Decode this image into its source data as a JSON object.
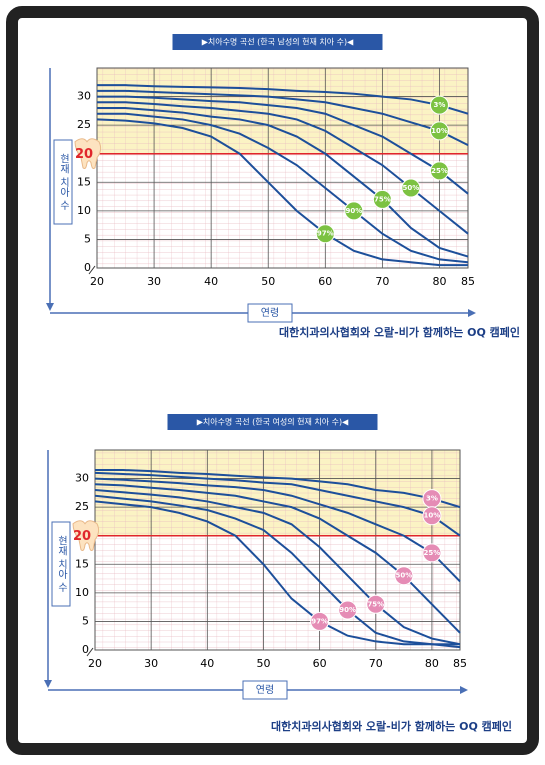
{
  "chart_data": [
    {
      "type": "line",
      "title": "▶치아수명 곡선 (한국 남성의 현재 치아 수)◀",
      "y_label": "현재 치아 수",
      "x_label": "연령",
      "caption": "대한치과의사협회와 오랄-비가 함께하는 OQ 캠페인",
      "x": [
        20,
        25,
        30,
        35,
        40,
        45,
        50,
        55,
        60,
        65,
        70,
        75,
        80,
        85
      ],
      "xlim": [
        20,
        85
      ],
      "xticks": [
        20,
        30,
        40,
        50,
        60,
        70,
        80,
        85
      ],
      "ylim": [
        0,
        35
      ],
      "yticks": [
        0,
        5,
        10,
        15,
        20,
        25,
        30
      ],
      "reference_line": 20,
      "grid": true,
      "marker_color": "#7cc242",
      "series": [
        {
          "name": "3%",
          "color": "#1d4f9a",
          "values": [
            32,
            32,
            31.8,
            31.7,
            31.6,
            31.5,
            31.3,
            31,
            30.8,
            30.5,
            30,
            29.5,
            28.5,
            27
          ]
        },
        {
          "name": "10%",
          "color": "#1d4f9a",
          "values": [
            31,
            31,
            30.8,
            30.6,
            30.4,
            30.2,
            30,
            29.5,
            29,
            28,
            27,
            25.5,
            24,
            21.5
          ]
        },
        {
          "name": "25%",
          "color": "#1d4f9a",
          "values": [
            30,
            30,
            29.8,
            29.5,
            29.2,
            29,
            28.5,
            28,
            27,
            25,
            23,
            20,
            17,
            13
          ]
        },
        {
          "name": "50%",
          "color": "#1d4f9a",
          "values": [
            29,
            29,
            28.7,
            28.3,
            28,
            27.5,
            27,
            26,
            24,
            21,
            18,
            14,
            10,
            6
          ]
        },
        {
          "name": "75%",
          "color": "#1d4f9a",
          "values": [
            28,
            28,
            27.6,
            27.2,
            26.5,
            26,
            25,
            23,
            20,
            16,
            12,
            7,
            3.5,
            2
          ]
        },
        {
          "name": "90%",
          "color": "#1d4f9a",
          "values": [
            27,
            27,
            26.5,
            26,
            25,
            23.5,
            21,
            18,
            14,
            10,
            6,
            3,
            1.5,
            1
          ]
        },
        {
          "name": "97%",
          "color": "#1d4f9a",
          "values": [
            26,
            25.8,
            25.3,
            24.5,
            23,
            20,
            15,
            10,
            6,
            3,
            1.5,
            1,
            0.5,
            0.5
          ]
        }
      ]
    },
    {
      "type": "line",
      "title": "▶치아수명 곡선 (한국 여성의 현재 치아 수)◀",
      "y_label": "현재 치아 수",
      "x_label": "연령",
      "caption": "대한치과의사협회와 오랄-비가 함께하는 OQ 캠페인",
      "x": [
        20,
        25,
        30,
        35,
        40,
        45,
        50,
        55,
        60,
        65,
        70,
        75,
        80,
        85
      ],
      "xlim": [
        20,
        85
      ],
      "xticks": [
        20,
        30,
        40,
        50,
        60,
        70,
        80,
        85
      ],
      "ylim": [
        0,
        35
      ],
      "yticks": [
        0,
        5,
        10,
        15,
        20,
        25,
        30
      ],
      "reference_line": 20,
      "grid": true,
      "marker_color": "#e58cb5",
      "series": [
        {
          "name": "3%",
          "color": "#1d4f9a",
          "values": [
            31.5,
            31.5,
            31.3,
            31,
            30.8,
            30.5,
            30.2,
            30,
            29.5,
            29,
            28,
            27.5,
            26.5,
            25
          ]
        },
        {
          "name": "10%",
          "color": "#1d4f9a",
          "values": [
            31,
            30.8,
            30.6,
            30.3,
            30,
            29.7,
            29.3,
            29,
            28,
            27,
            26,
            25,
            23.5,
            20
          ]
        },
        {
          "name": "25%",
          "color": "#1d4f9a",
          "values": [
            30,
            29.8,
            29.5,
            29.2,
            28.8,
            28.5,
            28,
            27,
            25.5,
            24,
            22,
            20,
            17,
            12
          ]
        },
        {
          "name": "50%",
          "color": "#1d4f9a",
          "values": [
            29,
            28.8,
            28.4,
            28,
            27.5,
            27,
            26,
            25,
            23,
            20,
            17,
            13,
            8,
            3
          ]
        },
        {
          "name": "75%",
          "color": "#1d4f9a",
          "values": [
            28,
            27.6,
            27.2,
            26.7,
            26,
            25,
            24,
            22,
            18,
            13,
            8,
            4,
            2,
            1
          ]
        },
        {
          "name": "90%",
          "color": "#1d4f9a",
          "values": [
            27,
            26.5,
            26,
            25.3,
            24.5,
            23,
            21,
            17,
            12,
            7,
            3,
            1.5,
            1,
            1
          ]
        },
        {
          "name": "97%",
          "color": "#1d4f9a",
          "values": [
            26,
            25.5,
            25,
            24,
            22.5,
            20,
            15,
            9,
            5,
            2.5,
            1.5,
            1,
            1,
            0.5
          ]
        }
      ]
    }
  ]
}
